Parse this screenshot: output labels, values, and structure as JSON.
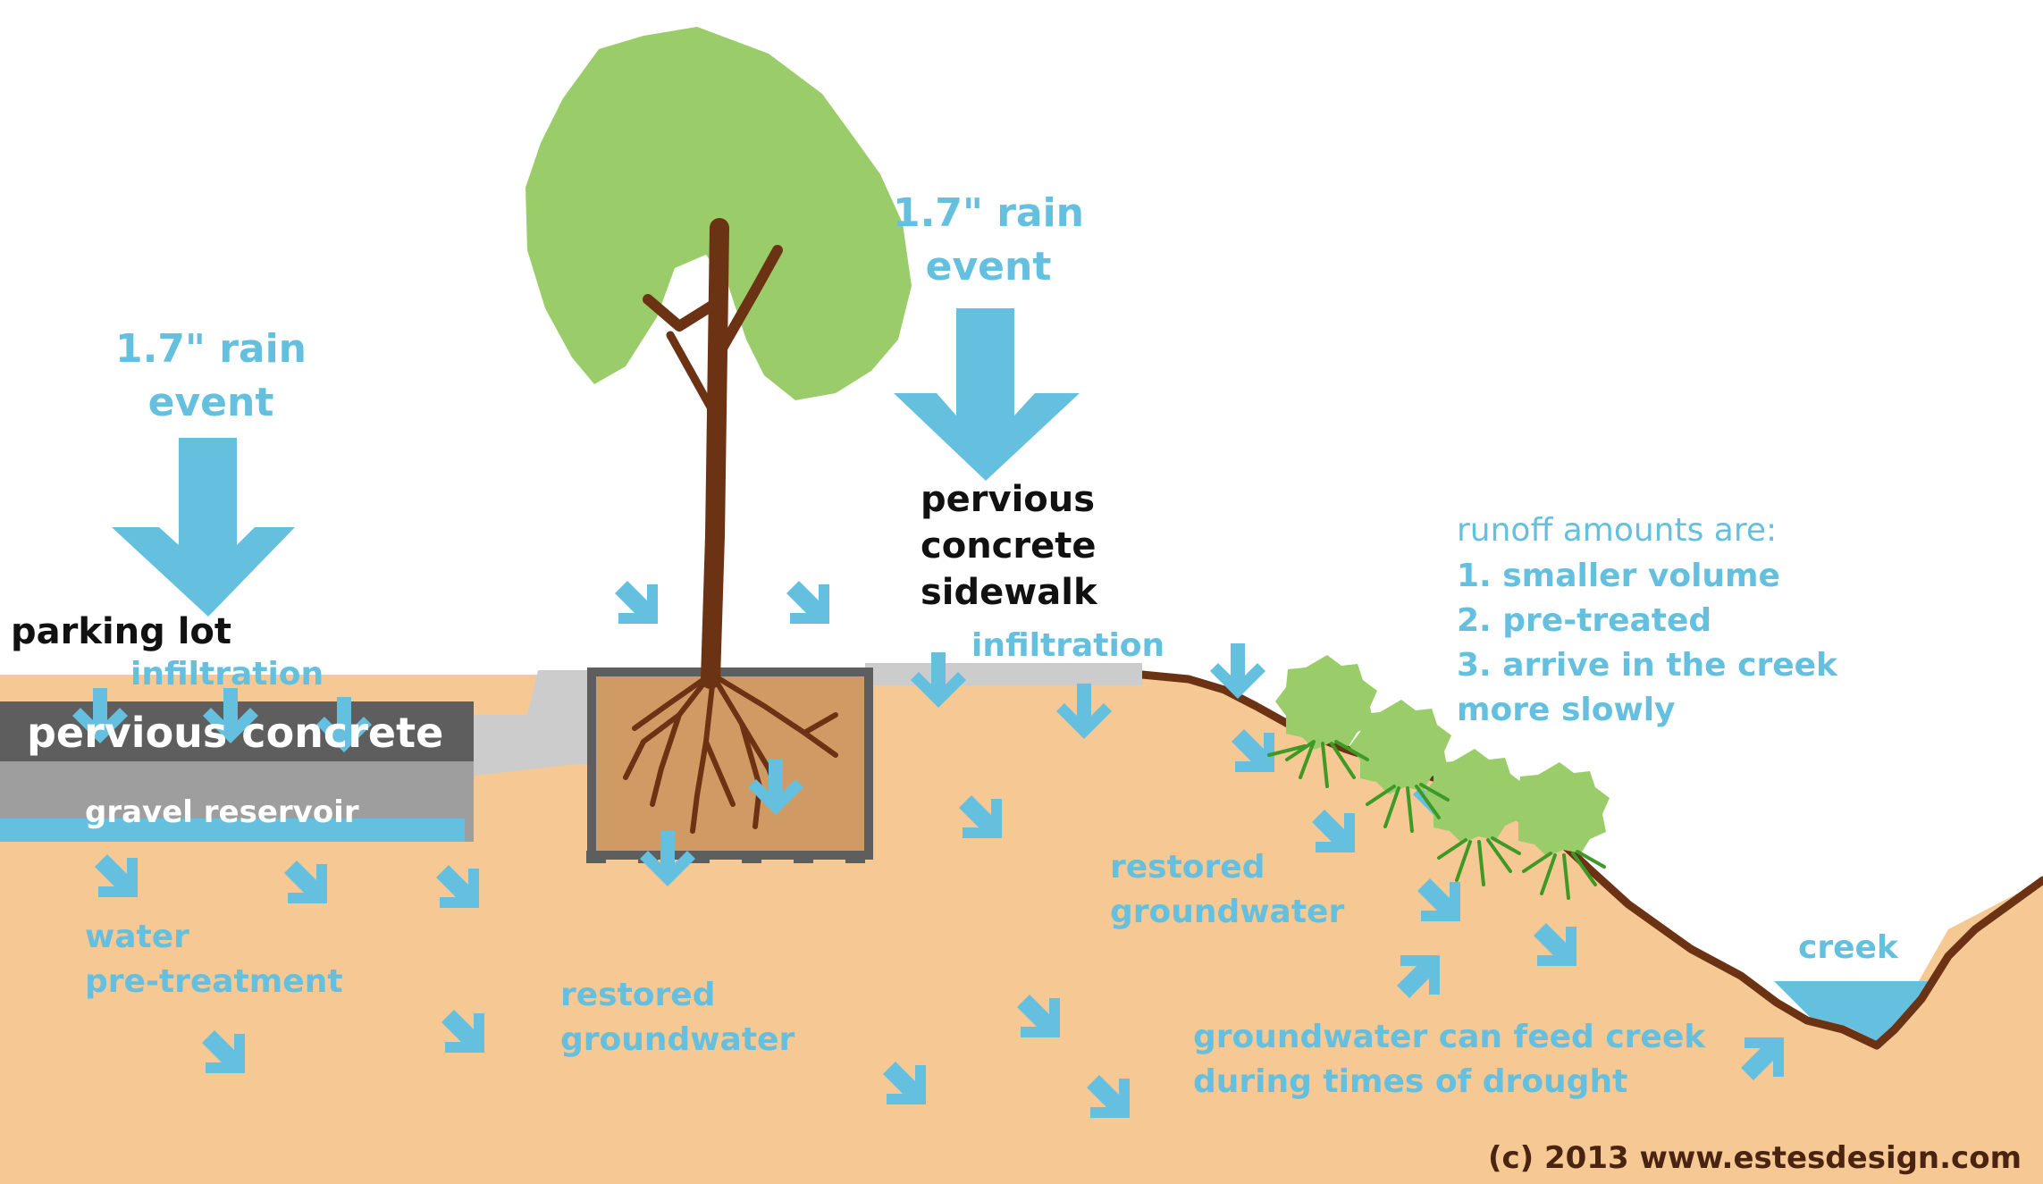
{
  "colors": {
    "water": "#64c0de",
    "soil": "#f5c894",
    "leaf": "#9acd6a",
    "trunk": "#6b3313",
    "planter": "#d09a64",
    "concrete_dark": "#5e5e5e",
    "gravel": "#9e9e9e",
    "curb": "#cccccc",
    "root_grass": "#3e9a26"
  },
  "icons": [
    "rain-arrow-icon",
    "infiltration-arrow-icon",
    "tree-icon",
    "shrub-icon",
    "root-icon"
  ],
  "labels": {
    "rain_left_1": "1.7\" rain",
    "rain_left_2": "event",
    "rain_center_1": "1.7\" rain",
    "rain_center_2": "event",
    "parking_lot": "parking lot",
    "infiltration_left": "infiltration",
    "pervious_concrete": "pervious concrete",
    "gravel_reservoir": "gravel reservoir",
    "sidewalk_1": "pervious",
    "sidewalk_2": "concrete",
    "sidewalk_3": "sidewalk",
    "infiltration_right": "infiltration",
    "water_pretreatment_1": "water",
    "water_pretreatment_2": "pre-treatment",
    "restored_groundwater_left_1": "restored",
    "restored_groundwater_left_2": "groundwater",
    "restored_groundwater_right_1": "restored",
    "restored_groundwater_right_2": "groundwater",
    "runoff_title": "runoff amounts are:",
    "runoff_1": "1. smaller volume",
    "runoff_2": "2. pre-treated",
    "runoff_3": "3. arrive in the creek",
    "runoff_4": "more slowly",
    "creek": "creek",
    "groundwater_feed_1": "groundwater can feed creek",
    "groundwater_feed_2": "during times of drought",
    "copyright": "(c) 2013 www.estesdesign.com"
  }
}
